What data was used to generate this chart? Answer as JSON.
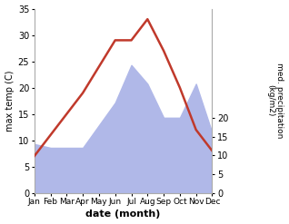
{
  "months": [
    "Jan",
    "Feb",
    "Mar",
    "Apr",
    "May",
    "Jun",
    "Jul",
    "Aug",
    "Sep",
    "Oct",
    "Nov",
    "Dec"
  ],
  "temp": [
    7,
    11,
    15,
    19,
    24,
    29,
    29,
    33,
    27,
    20,
    12,
    8
  ],
  "precip": [
    13,
    12,
    12,
    12,
    18,
    24,
    34,
    29,
    20,
    20,
    29,
    16
  ],
  "temp_color": "#c0392b",
  "precip_fill_color": "#b0b8e8",
  "temp_ylim": [
    0,
    35
  ],
  "precip_ylim": [
    0,
    49
  ],
  "temp_yticks": [
    0,
    5,
    10,
    15,
    20,
    25,
    30,
    35
  ],
  "precip_yticks": [
    0,
    5,
    10,
    15,
    20
  ],
  "xlabel": "date (month)",
  "ylabel_left": "max temp (C)",
  "ylabel_right": "med. precipitation\n(kg/m2)",
  "bg_color": "#ffffff"
}
